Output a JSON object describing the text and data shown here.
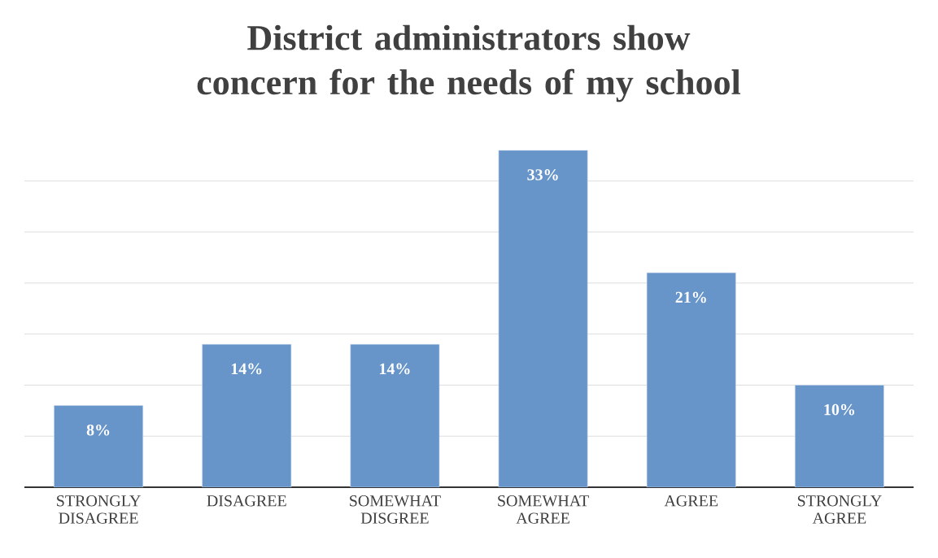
{
  "chart_data": {
    "type": "bar",
    "title": "District administrators show concern for the needs of my school",
    "categories": [
      "STRONGLY DISAGREE",
      "DISAGREE",
      "SOMEWHAT DISGREE",
      "SOMEWHAT AGREE",
      "AGREE",
      "STRONGLY AGREE"
    ],
    "values": [
      8,
      14,
      14,
      33,
      21,
      10
    ],
    "value_labels": [
      "8%",
      "14%",
      "14%",
      "33%",
      "21%",
      "10%"
    ],
    "color": "#6795c9",
    "tick_labels": "x",
    "grid": "y"
  }
}
